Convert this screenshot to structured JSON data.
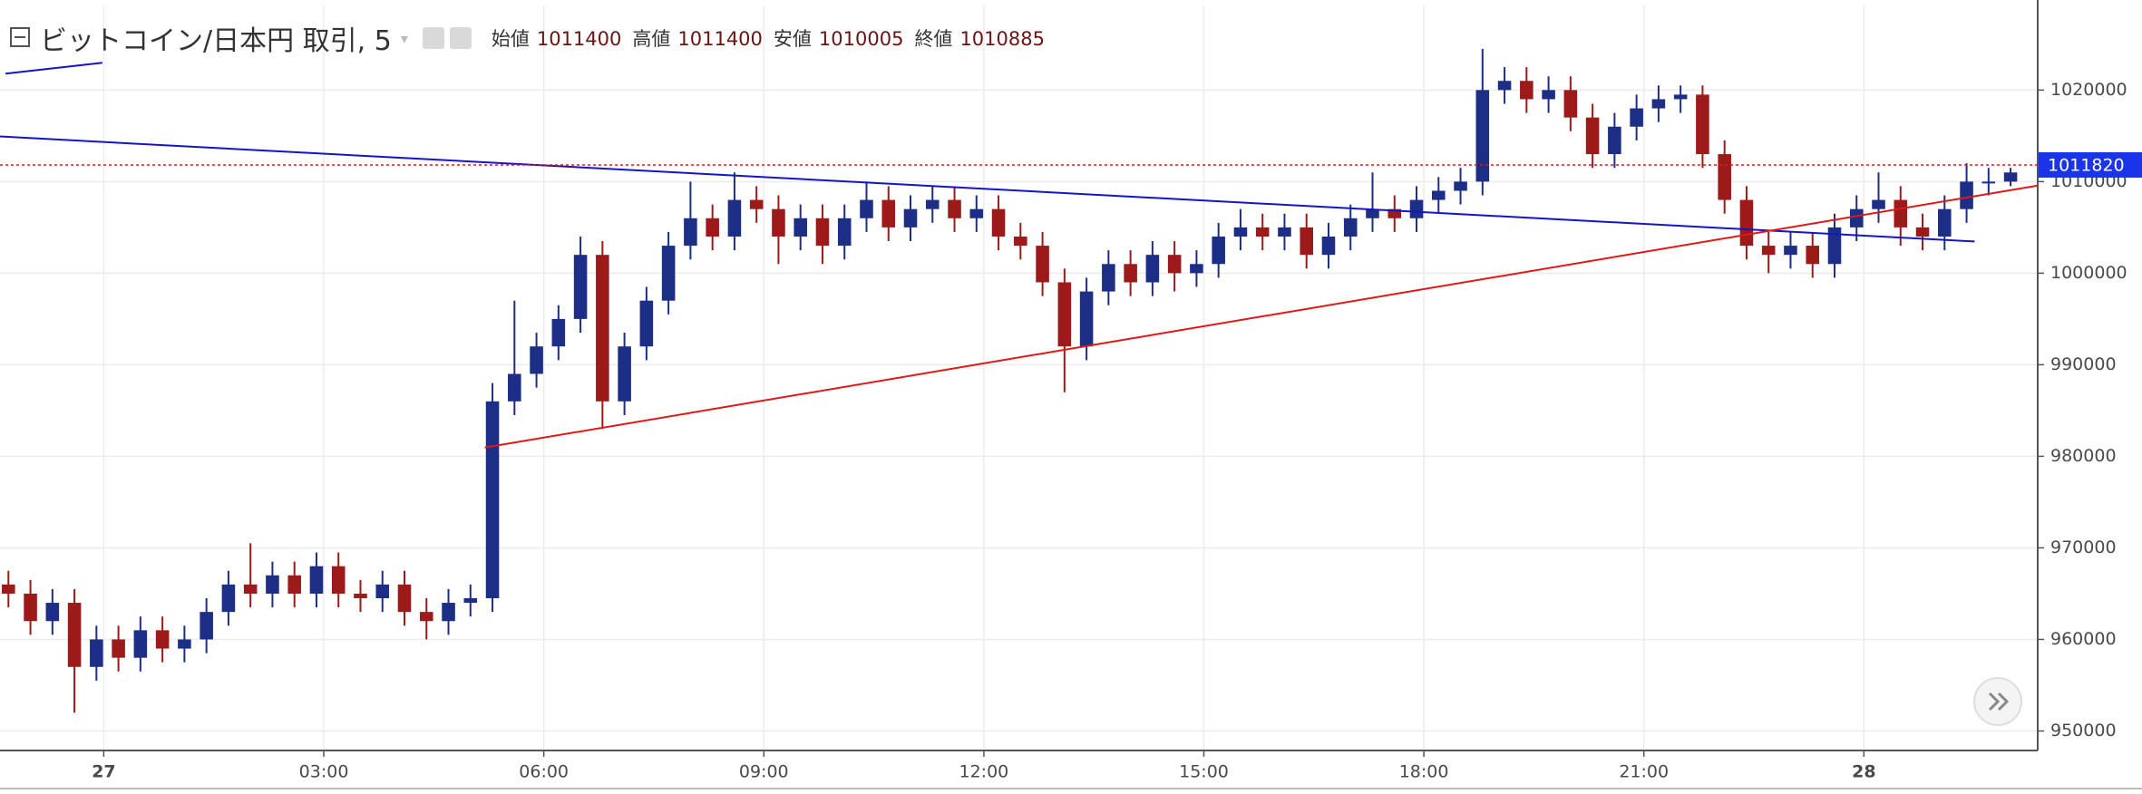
{
  "header": {
    "title": "ビットコイン/日本円 取引, 5",
    "ohlc": [
      {
        "label": "始値",
        "value": 1011400
      },
      {
        "label": "高値",
        "value": 1011400
      },
      {
        "label": "安値",
        "value": 1010005
      },
      {
        "label": "終値",
        "value": 1010885
      }
    ]
  },
  "chart_data": {
    "type": "candlestick",
    "up_color": "#1c2e86",
    "down_color": "#9c1a1a",
    "grid": true,
    "xlim": [
      -1.415,
      26.37
    ],
    "xticks": [
      {
        "value": 0,
        "label": "27"
      },
      {
        "value": 3,
        "label": "03:00"
      },
      {
        "value": 6,
        "label": "06:00"
      },
      {
        "value": 9,
        "label": "09:00"
      },
      {
        "value": 12,
        "label": "12:00"
      },
      {
        "value": 15,
        "label": "15:00"
      },
      {
        "value": 18,
        "label": "18:00"
      },
      {
        "value": 21,
        "label": "21:00"
      },
      {
        "value": 24,
        "label": "28"
      }
    ],
    "ylim": [
      947870,
      1029240
    ],
    "yticks": [
      950000,
      960000,
      970000,
      980000,
      990000,
      1000000,
      1010000,
      1020000
    ],
    "x": [
      -1.3,
      -1.0,
      -0.7,
      -0.4,
      -0.1,
      0.2,
      0.5,
      0.8,
      1.1,
      1.4,
      1.7,
      2.0,
      2.3,
      2.6,
      2.9,
      3.2,
      3.5,
      3.8,
      4.1,
      4.4,
      4.7,
      5.0,
      5.3,
      5.6,
      5.9,
      6.2,
      6.5,
      6.8,
      7.1,
      7.4,
      7.7,
      8.0,
      8.3,
      8.6,
      8.9,
      9.2,
      9.5,
      9.8,
      10.1,
      10.4,
      10.7,
      11.0,
      11.3,
      11.6,
      11.9,
      12.2,
      12.5,
      12.8,
      13.1,
      13.4,
      13.7,
      14.0,
      14.3,
      14.6,
      14.9,
      15.2,
      15.5,
      15.8,
      16.1,
      16.4,
      16.7,
      17.0,
      17.3,
      17.6,
      17.9,
      18.2,
      18.5,
      18.8,
      19.1,
      19.4,
      19.7,
      20.0,
      20.3,
      20.6,
      20.9,
      21.2,
      21.5,
      21.8,
      22.1,
      22.4,
      22.7,
      23.0,
      23.3,
      23.6,
      23.9,
      24.2,
      24.5,
      24.8,
      25.1,
      25.4,
      25.7,
      26.0
    ],
    "open": [
      966000,
      965000,
      962000,
      964000,
      957000,
      960000,
      958000,
      961000,
      959000,
      960000,
      963000,
      966000,
      965000,
      967000,
      965000,
      968000,
      965000,
      964500,
      966000,
      963000,
      962000,
      964000,
      964500,
      986000,
      989000,
      992000,
      995000,
      1002000,
      986000,
      992000,
      997000,
      1003000,
      1006000,
      1004000,
      1008000,
      1007000,
      1004000,
      1006000,
      1003000,
      1006000,
      1008000,
      1005000,
      1007000,
      1008000,
      1006000,
      1007000,
      1004000,
      1003000,
      999000,
      992000,
      998000,
      1001000,
      999000,
      1002000,
      1000000,
      1001000,
      1004000,
      1005000,
      1004000,
      1005000,
      1002000,
      1004000,
      1006000,
      1007000,
      1006000,
      1008000,
      1009000,
      1010000,
      1020000,
      1021000,
      1019000,
      1020000,
      1017000,
      1013000,
      1016000,
      1018000,
      1019000,
      1019500,
      1013000,
      1008000,
      1003000,
      1002000,
      1003000,
      1001000,
      1005000,
      1007000,
      1008000,
      1005000,
      1004000,
      1007000,
      1010000,
      1010000
    ],
    "high": [
      967500,
      966500,
      965500,
      965500,
      961500,
      961500,
      962500,
      962500,
      961500,
      964500,
      967500,
      970500,
      968500,
      968500,
      969500,
      969500,
      966500,
      967500,
      967500,
      964500,
      965500,
      966000,
      988000,
      997000,
      993500,
      996500,
      1004000,
      1003500,
      993500,
      998500,
      1004500,
      1010000,
      1007500,
      1011000,
      1009500,
      1008500,
      1007500,
      1007500,
      1007500,
      1010000,
      1009500,
      1008500,
      1009500,
      1009500,
      1008500,
      1008500,
      1005500,
      1004500,
      1000500,
      999500,
      1002500,
      1002500,
      1003500,
      1003500,
      1002500,
      1005500,
      1007000,
      1006500,
      1006500,
      1006500,
      1005500,
      1007500,
      1011000,
      1008500,
      1009500,
      1010500,
      1011500,
      1024500,
      1022500,
      1022500,
      1021500,
      1021500,
      1018500,
      1017500,
      1019500,
      1020500,
      1020500,
      1020500,
      1014500,
      1009500,
      1004500,
      1004500,
      1004500,
      1006500,
      1008500,
      1011000,
      1009500,
      1006500,
      1008500,
      1012000,
      1011500,
      1011500
    ],
    "low": [
      963500,
      960500,
      960500,
      952000,
      955500,
      956500,
      956500,
      957500,
      957500,
      958500,
      961500,
      963500,
      963500,
      963500,
      963500,
      963500,
      963000,
      963000,
      961500,
      960000,
      960500,
      962500,
      963000,
      984500,
      987500,
      990500,
      993500,
      983000,
      984500,
      990500,
      995500,
      1001500,
      1002500,
      1002500,
      1005500,
      1001000,
      1002500,
      1001000,
      1001500,
      1004500,
      1003500,
      1003500,
      1005500,
      1004500,
      1004500,
      1002500,
      1001500,
      997500,
      987000,
      990500,
      996500,
      997500,
      997500,
      998000,
      998500,
      999500,
      1002500,
      1002500,
      1002500,
      1000500,
      1000500,
      1002500,
      1004500,
      1004500,
      1004500,
      1006500,
      1007500,
      1008500,
      1018500,
      1017500,
      1017500,
      1015500,
      1011500,
      1011500,
      1014500,
      1016500,
      1017500,
      1011500,
      1006500,
      1001500,
      1000000,
      1000500,
      999500,
      999500,
      1003500,
      1005500,
      1003000,
      1002500,
      1002500,
      1005500,
      1008500,
      1009500
    ],
    "close": [
      965000,
      962000,
      964000,
      957000,
      960000,
      958000,
      961000,
      959000,
      960000,
      963000,
      966000,
      965000,
      967000,
      965000,
      968000,
      965000,
      964500,
      966000,
      963000,
      962000,
      964000,
      964500,
      986000,
      989000,
      992000,
      995000,
      1002000,
      986000,
      992000,
      997000,
      1003000,
      1006000,
      1004000,
      1008000,
      1007000,
      1004000,
      1006000,
      1003000,
      1006000,
      1008000,
      1005000,
      1007000,
      1008000,
      1006000,
      1007000,
      1004000,
      1003000,
      999000,
      992000,
      998000,
      1001000,
      999000,
      1002000,
      1000000,
      1001000,
      1004000,
      1005000,
      1004000,
      1005000,
      1002000,
      1004000,
      1006000,
      1007000,
      1006000,
      1008000,
      1009000,
      1010000,
      1020000,
      1021000,
      1019000,
      1020000,
      1017000,
      1013000,
      1016000,
      1018000,
      1019000,
      1019500,
      1013000,
      1008000,
      1003000,
      1002000,
      1003000,
      1001000,
      1005000,
      1007000,
      1008000,
      1005000,
      1004000,
      1007000,
      1010000,
      1010000,
      1011000
    ],
    "last_price": 1011820,
    "last_price_color": "#1a35e8",
    "trendlines": [
      {
        "color": "#1414c8",
        "points": [
          [
            -1.415,
            1014930
          ],
          [
            25.51,
            1003460
          ]
        ]
      },
      {
        "color": "#e01818",
        "points": [
          [
            5.196,
            980955
          ],
          [
            26.37,
            1009568
          ]
        ]
      },
      {
        "color": "#1414c8",
        "points": [
          [
            -1.34,
            1021790
          ],
          [
            -0.019,
            1022980
          ]
        ]
      }
    ]
  }
}
